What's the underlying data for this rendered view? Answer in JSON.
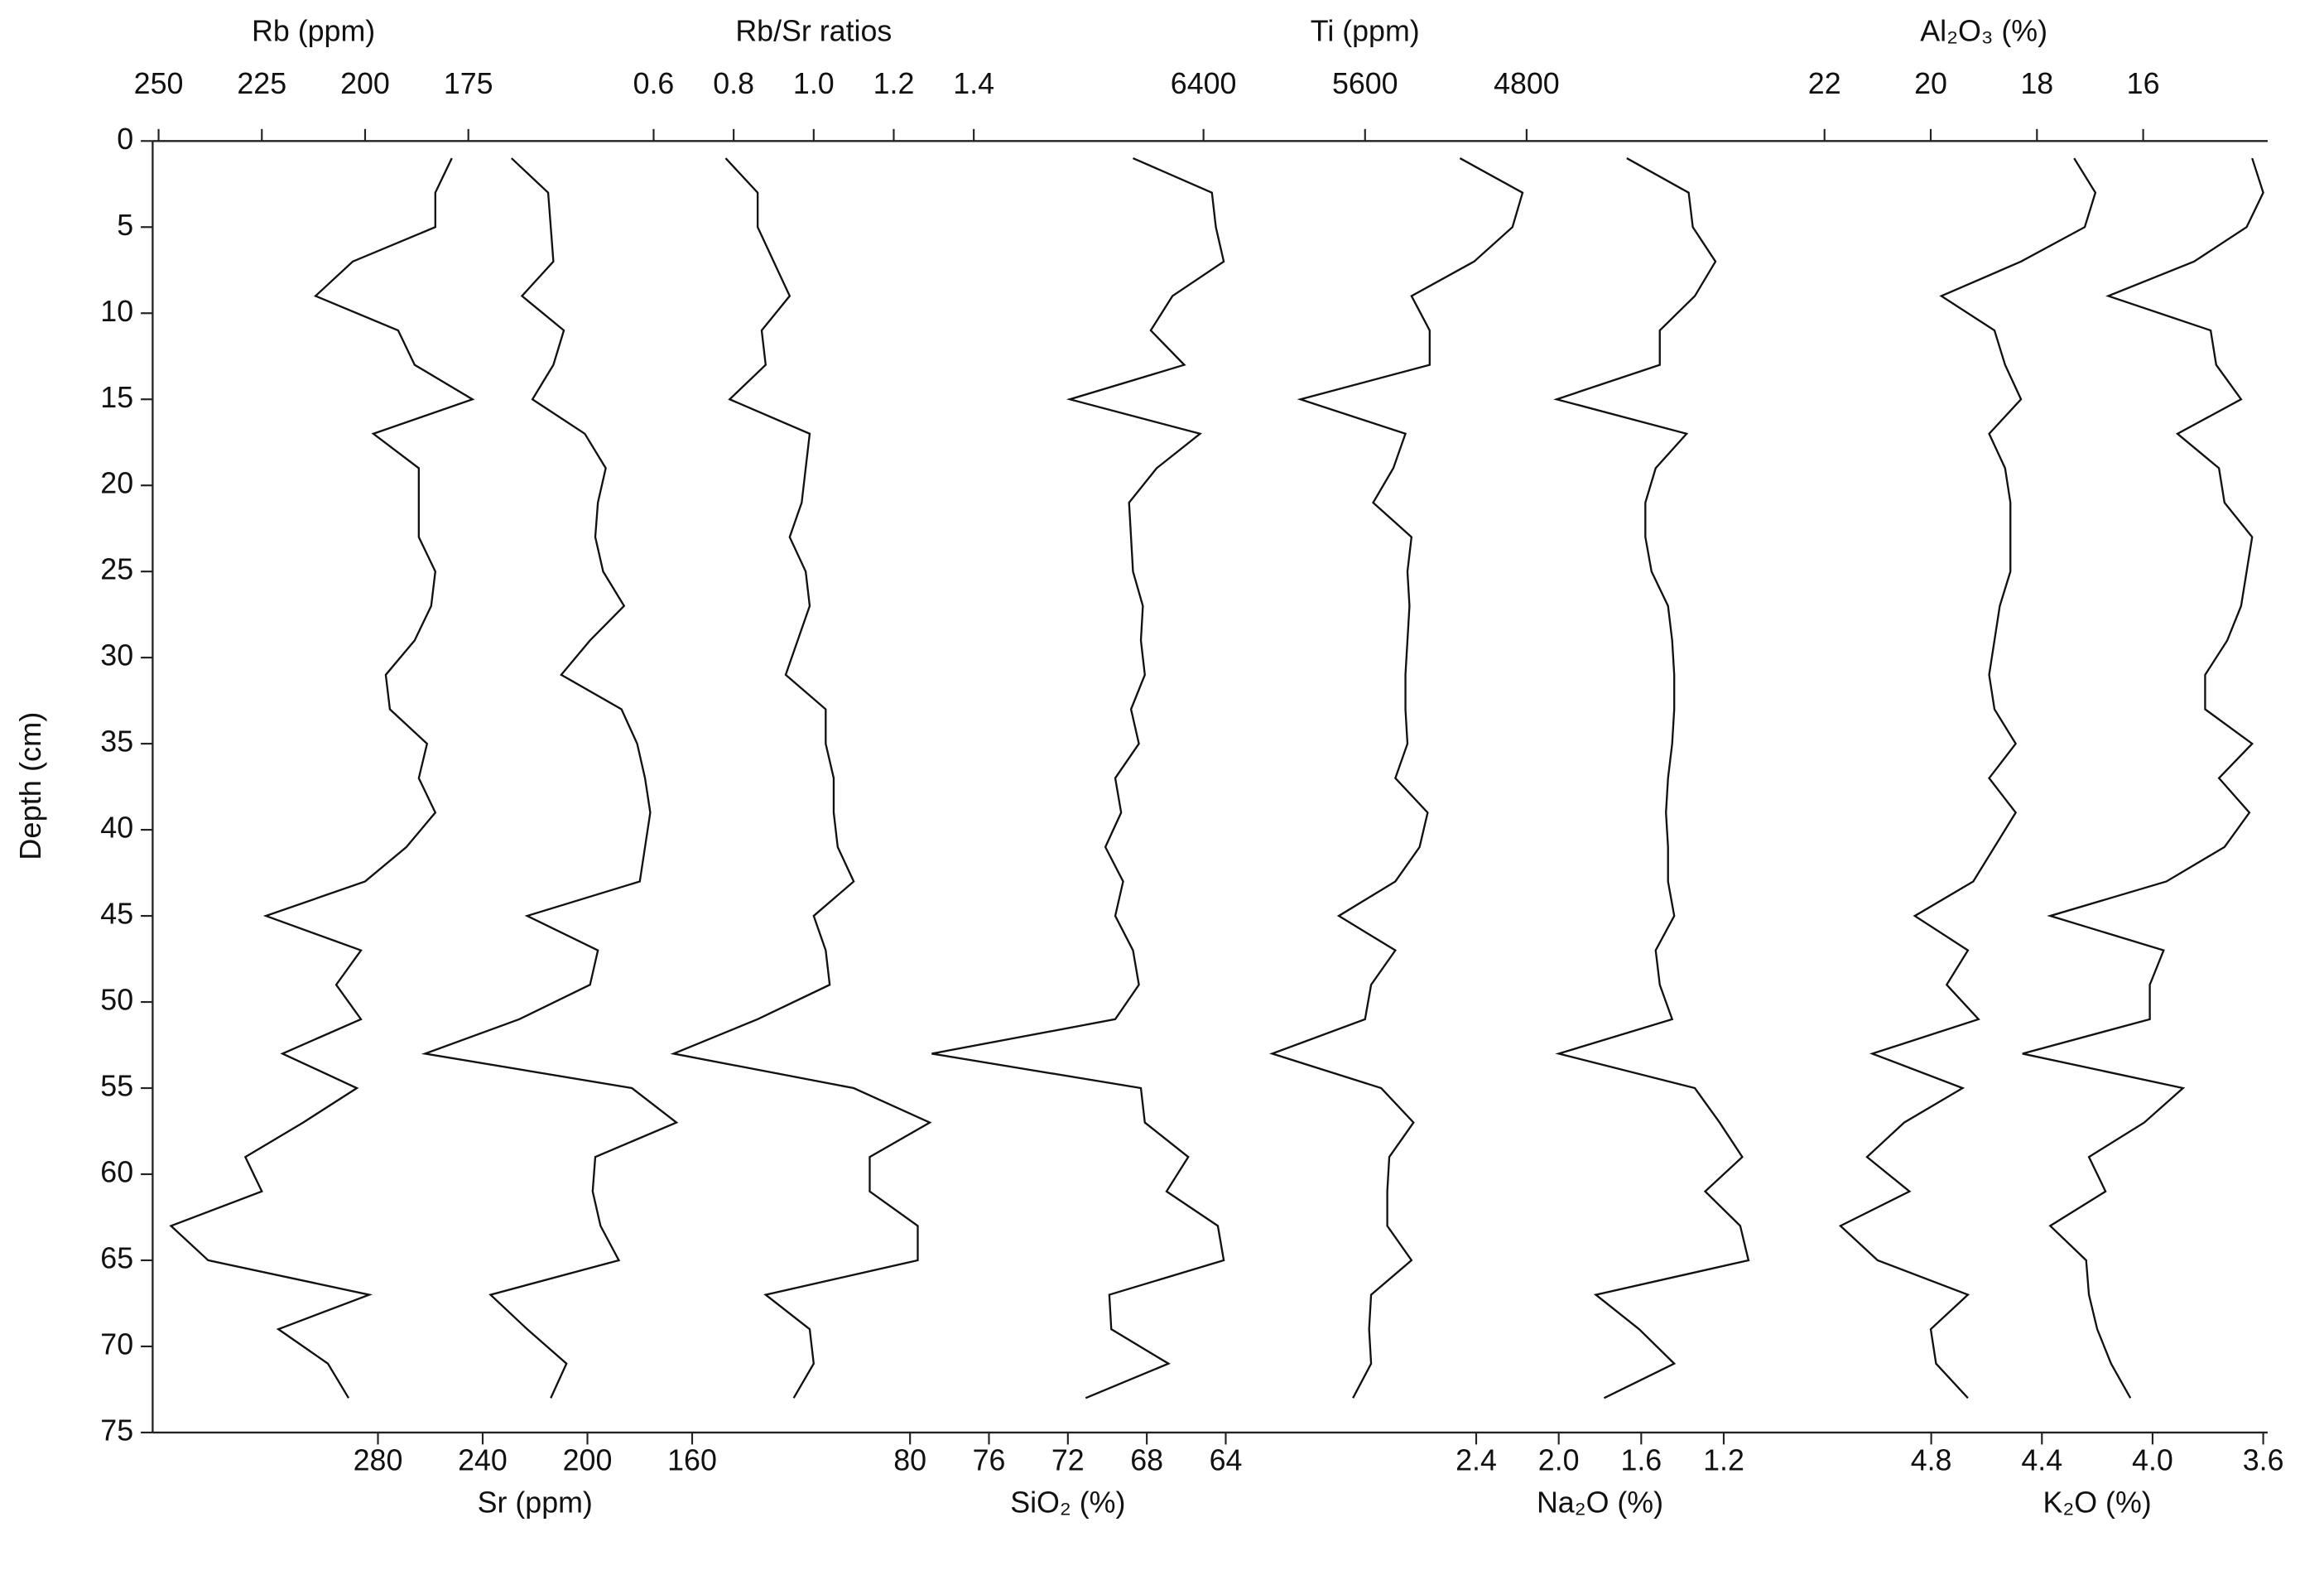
{
  "chart_data": {
    "type": "line",
    "y_label": "Depth (cm)",
    "ylim": [
      0,
      75
    ],
    "yticks": [
      0,
      5,
      10,
      15,
      20,
      25,
      30,
      35,
      40,
      45,
      50,
      55,
      60,
      65,
      70,
      75
    ],
    "y_inverted": true,
    "depth": [
      1,
      3,
      5,
      7,
      9,
      11,
      13,
      15,
      17,
      19,
      21,
      23,
      25,
      27,
      29,
      31,
      33,
      35,
      37,
      39,
      41,
      43,
      45,
      47,
      49,
      51,
      53,
      55,
      57,
      59,
      61,
      63,
      65,
      67,
      69,
      71,
      73
    ],
    "series": [
      {
        "name": "Rb (ppm)",
        "position": "top",
        "color": "#111111",
        "xlim": [
          250,
          175
        ],
        "xticks": [
          250,
          225,
          200,
          175
        ],
        "values": [
          179,
          183,
          183,
          203,
          212,
          192,
          188,
          174,
          198,
          187,
          187,
          187,
          183,
          184,
          188,
          195,
          194,
          185,
          187,
          183,
          190,
          200,
          224,
          201,
          207,
          201,
          220,
          202,
          215,
          229,
          225,
          247,
          238,
          199,
          221,
          209,
          204
        ]
      },
      {
        "name": "Rb/Sr ratios",
        "position": "top",
        "color": "#111111",
        "xlim": [
          0.6,
          1.4
        ],
        "xticks": [
          0.6,
          0.8,
          {
            "value": 1,
            "label": "1.0"
          },
          1.2,
          1.4
        ],
        "values": [
          0.78,
          0.86,
          0.86,
          0.9,
          0.94,
          0.87,
          0.88,
          0.79,
          0.99,
          0.98,
          0.97,
          0.94,
          0.98,
          0.99,
          0.96,
          0.93,
          1.03,
          1.03,
          1.05,
          1.05,
          1.06,
          1.1,
          1.0,
          1.03,
          1.04,
          0.86,
          0.65,
          1.1,
          1.29,
          1.14,
          1.14,
          1.26,
          1.26,
          0.88,
          0.99,
          1.0,
          0.95
        ]
      },
      {
        "name": "Ti (ppm)",
        "position": "top",
        "color": "#111111",
        "xlim": [
          6400,
          4800
        ],
        "xticks": [
          6400,
          5600,
          4800
        ],
        "values": [
          5130,
          4820,
          4870,
          5060,
          5370,
          5280,
          5280,
          5920,
          5400,
          5460,
          5560,
          5370,
          5390,
          5380,
          5390,
          5400,
          5400,
          5390,
          5450,
          5290,
          5330,
          5450,
          5730,
          5450,
          5570,
          5600,
          6060,
          5520,
          5360,
          5480,
          5490,
          5490,
          5370,
          5570,
          5580,
          5570,
          5660
        ]
      },
      {
        "name": "Al₂O₃ (%)",
        "position": "top",
        "color": "#111111",
        "xlim": [
          22,
          16
        ],
        "xticks": [
          22,
          20,
          18,
          16
        ],
        "values": [
          17.3,
          16.9,
          17.1,
          18.3,
          19.8,
          18.8,
          18.6,
          18.3,
          18.9,
          18.6,
          18.5,
          18.5,
          18.5,
          18.7,
          18.8,
          18.9,
          18.8,
          18.4,
          18.9,
          18.4,
          18.8,
          19.2,
          20.3,
          19.3,
          19.7,
          19.1,
          21.1,
          19.4,
          20.5,
          21.2,
          20.4,
          21.7,
          21.0,
          19.3,
          20.0,
          19.9,
          19.3
        ]
      },
      {
        "name": "Sr (ppm)",
        "position": "bottom",
        "color": "#111111",
        "xlim": [
          280,
          160
        ],
        "xticks": [
          280,
          240,
          200,
          160
        ],
        "values": [
          229,
          215,
          214,
          213,
          225,
          209,
          213,
          221,
          201,
          193,
          196,
          197,
          194,
          186,
          199,
          210,
          187,
          181,
          178,
          176,
          178,
          180,
          223,
          196,
          199,
          226,
          262,
          183,
          166,
          197,
          198,
          195,
          188,
          237,
          223,
          208,
          214
        ]
      },
      {
        "name": "SiO₂ (%)",
        "position": "bottom",
        "color": "#111111",
        "xlim": [
          80,
          64
        ],
        "xticks": [
          80,
          76,
          72,
          68,
          64
        ],
        "values": [
          68.7,
          64.7,
          64.5,
          64.1,
          66.7,
          67.8,
          66.1,
          71.9,
          65.3,
          67.5,
          68.9,
          68.8,
          68.7,
          68.2,
          68.3,
          68.1,
          68.8,
          68.4,
          69.6,
          69.3,
          70.1,
          69.2,
          69.6,
          68.7,
          68.4,
          69.6,
          78.9,
          68.3,
          68.1,
          65.9,
          67.0,
          64.4,
          64.1,
          69.9,
          69.8,
          66.9,
          71.1
        ]
      },
      {
        "name": "Na₂O (%)",
        "position": "bottom",
        "color": "#111111",
        "xlim": [
          2.4,
          1.2
        ],
        "xticks": [
          2.4,
          {
            "value": 2,
            "label": "2.0"
          },
          1.6,
          1.2
        ],
        "values": [
          1.67,
          1.37,
          1.35,
          1.24,
          1.34,
          1.51,
          1.51,
          2.01,
          1.38,
          1.53,
          1.58,
          1.58,
          1.55,
          1.47,
          1.45,
          1.44,
          1.44,
          1.45,
          1.47,
          1.48,
          1.47,
          1.47,
          1.44,
          1.53,
          1.51,
          1.45,
          2.0,
          1.34,
          1.22,
          1.11,
          1.29,
          1.12,
          1.08,
          1.82,
          1.61,
          1.44,
          1.78
        ]
      },
      {
        "name": "K₂O (%)",
        "position": "bottom",
        "color": "#111111",
        "xlim": [
          4.8,
          3.6
        ],
        "xticks": [
          4.8,
          4.4,
          {
            "value": 4,
            "label": "4.0"
          },
          3.6
        ],
        "values": [
          3.64,
          3.6,
          3.66,
          3.85,
          4.16,
          3.79,
          3.77,
          3.68,
          3.91,
          3.76,
          3.74,
          3.64,
          3.66,
          3.68,
          3.73,
          3.81,
          3.81,
          3.64,
          3.76,
          3.65,
          3.74,
          3.95,
          4.37,
          3.96,
          4.01,
          4.01,
          4.47,
          3.89,
          4.03,
          4.23,
          4.17,
          4.37,
          4.24,
          4.23,
          4.2,
          4.15,
          4.08
        ]
      }
    ]
  }
}
